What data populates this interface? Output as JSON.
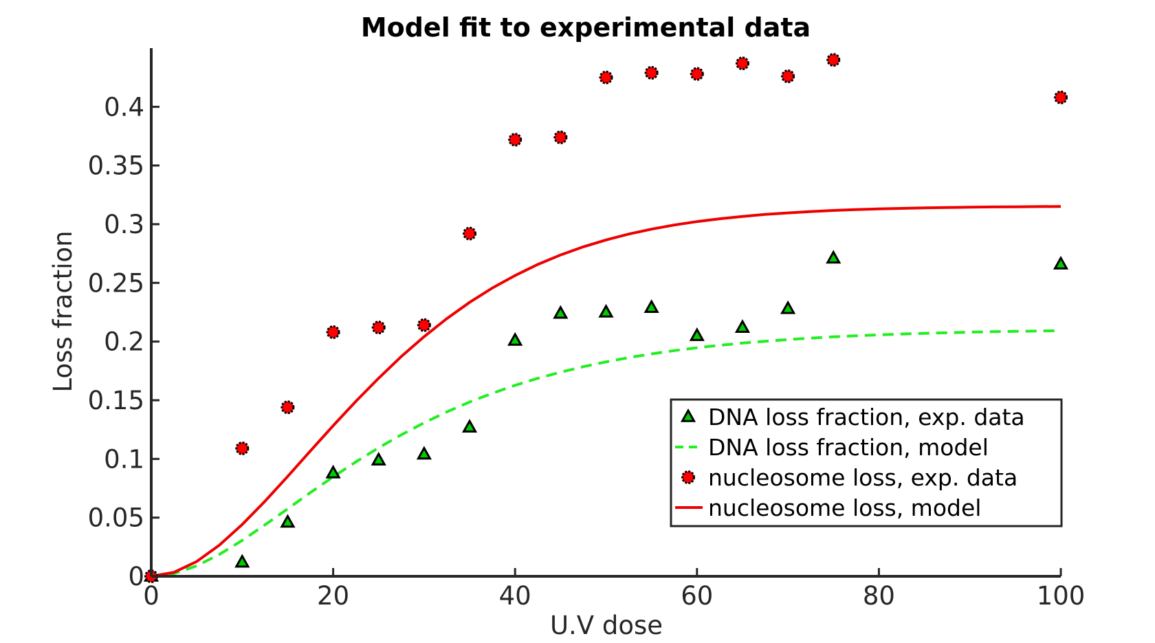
{
  "chart_data": {
    "type": "scatter",
    "title": "Model fit to experimental data",
    "xlabel": "U.V dose",
    "ylabel": "Loss fraction",
    "xlim": [
      0,
      100
    ],
    "ylim": [
      0,
      0.45
    ],
    "xticks": [
      0,
      20,
      40,
      60,
      80,
      100
    ],
    "xtick_labels": [
      "0",
      "20",
      "40",
      "60",
      "80",
      "100"
    ],
    "yticks": [
      0,
      0.05,
      0.1,
      0.15,
      0.2,
      0.25,
      0.3,
      0.35,
      0.4
    ],
    "ytick_labels": [
      "0",
      "0.05",
      "0.1",
      "0.15",
      "0.2",
      "0.25",
      "0.3",
      "0.35",
      "0.4"
    ],
    "grid": false,
    "legend_position": "bottom-right",
    "series": [
      {
        "name": "DNA loss fraction, exp. data",
        "kind": "scatter",
        "marker": "triangle",
        "color": "#00cc00",
        "edge_color": "#000000",
        "x": [
          0,
          10,
          15,
          20,
          25,
          30,
          35,
          40,
          45,
          50,
          55,
          60,
          65,
          70,
          75,
          100
        ],
        "y": [
          0,
          0.012,
          0.046,
          0.088,
          0.099,
          0.104,
          0.127,
          0.201,
          0.224,
          0.225,
          0.229,
          0.205,
          0.212,
          0.228,
          0.271,
          0.266
        ]
      },
      {
        "name": "DNA loss fraction, model",
        "kind": "line",
        "style": "dashed",
        "color": "#22ee22",
        "x": [
          0,
          2.5,
          5,
          7.5,
          10,
          12.5,
          15,
          17.5,
          20,
          22.5,
          25,
          27.5,
          30,
          32.5,
          35,
          37.5,
          40,
          42.5,
          45,
          47.5,
          50,
          52.5,
          55,
          57.5,
          60,
          62.5,
          65,
          67.5,
          70,
          72.5,
          75,
          77.5,
          80,
          82.5,
          85,
          87.5,
          90,
          92.5,
          95,
          97.5,
          100
        ],
        "y": [
          0,
          0.0023,
          0.0089,
          0.0187,
          0.0306,
          0.0438,
          0.0575,
          0.0713,
          0.0847,
          0.0975,
          0.1095,
          0.1206,
          0.1308,
          0.1401,
          0.1485,
          0.1559,
          0.1627,
          0.1687,
          0.1739,
          0.1786,
          0.1827,
          0.1863,
          0.1895,
          0.1923,
          0.1947,
          0.1968,
          0.1987,
          0.2003,
          0.2017,
          0.2029,
          0.204,
          0.2049,
          0.2057,
          0.2064,
          0.207,
          0.2075,
          0.208,
          0.2084,
          0.2087,
          0.209,
          0.2093
        ],
        "y_scaled_note": ""
      },
      {
        "name": "nucleosome loss, exp. data",
        "kind": "scatter",
        "marker": "circle",
        "color": "#ff0000",
        "edge_color": "#000000",
        "x": [
          0,
          10,
          15,
          20,
          25,
          30,
          35,
          40,
          45,
          50,
          55,
          60,
          65,
          70,
          75,
          100
        ],
        "y": [
          0,
          0.109,
          0.144,
          0.208,
          0.212,
          0.214,
          0.292,
          0.372,
          0.374,
          0.425,
          0.429,
          0.428,
          0.437,
          0.426,
          0.44,
          0.408
        ]
      },
      {
        "name": "nucleosome loss, model",
        "kind": "line",
        "style": "solid",
        "color": "#ee0000",
        "x": [
          0,
          2.5,
          5,
          7.5,
          10,
          12.5,
          15,
          17.5,
          20,
          22.5,
          25,
          27.5,
          30,
          32.5,
          35,
          37.5,
          40,
          42.5,
          45,
          47.5,
          50,
          52.5,
          55,
          57.5,
          60,
          62.5,
          65,
          67.5,
          70,
          72.5,
          75,
          77.5,
          80,
          82.5,
          85,
          87.5,
          90,
          92.5,
          95,
          97.5,
          100
        ],
        "y": [
          0,
          0.0034,
          0.0126,
          0.0266,
          0.0441,
          0.0639,
          0.0851,
          0.1068,
          0.1283,
          0.1491,
          0.1688,
          0.1873,
          0.2042,
          0.2196,
          0.2334,
          0.2456,
          0.2563,
          0.2657,
          0.2738,
          0.2807,
          0.2866,
          0.2916,
          0.2958,
          0.2993,
          0.3022,
          0.3046,
          0.3066,
          0.3083,
          0.3096,
          0.3108,
          0.3117,
          0.3124,
          0.313,
          0.3135,
          0.3139,
          0.3142,
          0.3145,
          0.3147,
          0.3148,
          0.315,
          0.3151
        ]
      }
    ]
  }
}
